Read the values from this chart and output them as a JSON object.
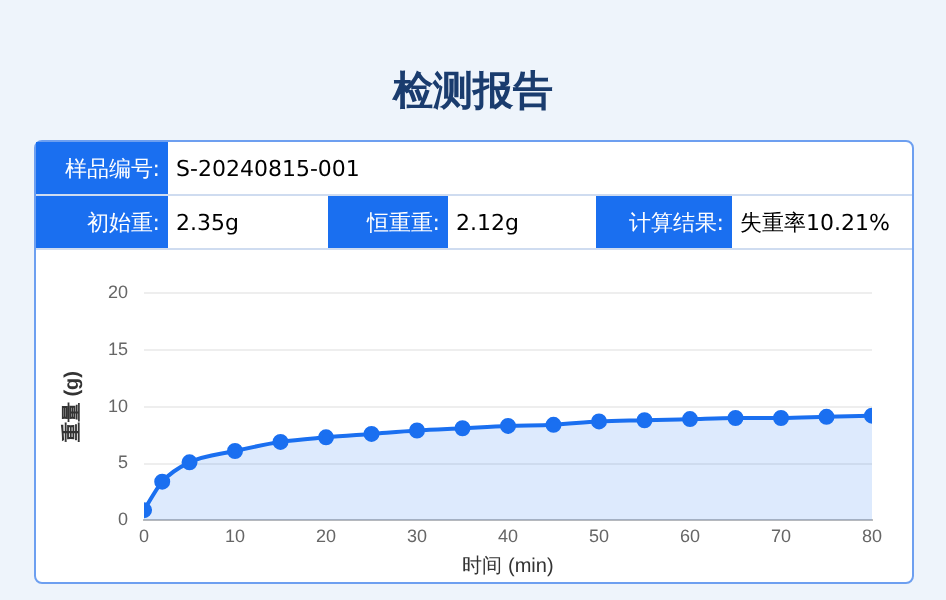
{
  "chart_data": {
    "type": "area",
    "title": "检测报告",
    "annotations": [
      "样品编号:",
      "S-20240815-001",
      "初始重:",
      "2.35g",
      "恒重重:",
      "2.12g",
      "计算结果:",
      "失重率10.21%"
    ],
    "xlabel": "时间 (min)",
    "ylabel": "重量 (g)",
    "x": [
      0,
      2,
      5,
      10,
      15,
      20,
      25,
      30,
      35,
      40,
      45,
      50,
      55,
      60,
      65,
      70,
      75,
      80
    ],
    "series": [
      {
        "color": "#1a6ff0",
        "values": [
          0.9,
          3.4,
          5.1,
          6.1,
          6.9,
          7.3,
          7.6,
          7.9,
          8.1,
          8.3,
          8.4,
          8.7,
          8.8,
          8.9,
          9.0,
          9.0,
          9.1,
          9.2
        ]
      }
    ],
    "xlim": [
      0,
      80
    ],
    "xticks": [
      0,
      10,
      20,
      30,
      40,
      50,
      60,
      70,
      80
    ],
    "ylim": [
      0,
      20
    ],
    "yticks": [
      0,
      5,
      10,
      15,
      20
    ],
    "grid": "y",
    "marker": "circle",
    "legend": false
  }
}
